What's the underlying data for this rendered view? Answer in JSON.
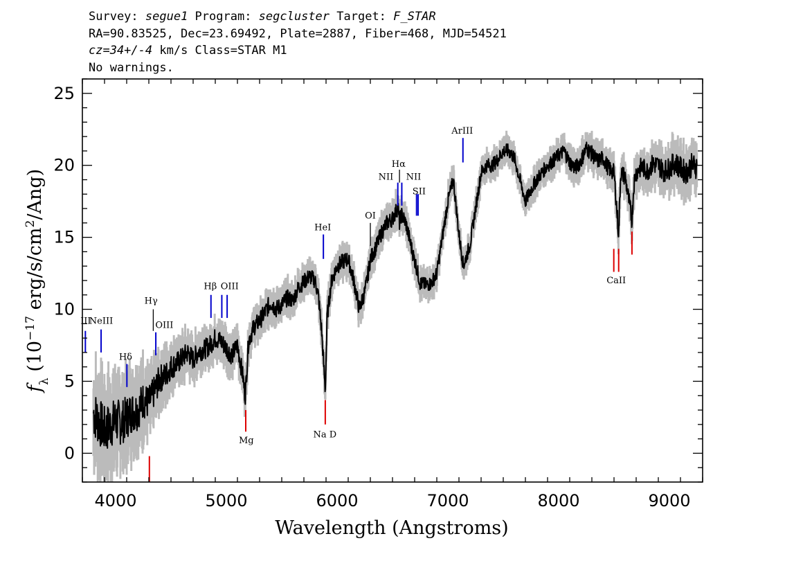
{
  "header": {
    "line1": {
      "survey_key": "Survey: ",
      "survey": "segue1",
      "program_key": " Program: ",
      "program": "segcluster",
      "target_key": " Target: ",
      "target": "F_STAR"
    },
    "line2": "RA=90.83525, Dec=23.69492, Plate=2887, Fiber=468, MJD=54521",
    "line3": {
      "cz": "cz=34+/-4",
      "rest": " km/s Class=STAR M1"
    },
    "line4": "No warnings."
  },
  "chart_data": {
    "type": "line",
    "title": "",
    "xlabel": "Wavelength (Angstroms)",
    "ylabel_parts": {
      "f": "f",
      "sub": "λ",
      "a": " (10",
      "exp1": "−17",
      "b": " erg/s/cm",
      "exp2": "2",
      "c": "/Ang)"
    },
    "xlim": [
      3700,
      9300
    ],
    "ylim": [
      -2,
      26
    ],
    "xticks": [
      4000,
      5000,
      6000,
      7000,
      8000,
      9000
    ],
    "yticks": [
      0,
      5,
      10,
      15,
      20,
      25
    ],
    "colors": {
      "flux": "#000000",
      "error_band": "#bbbbbb",
      "emission": "#0000cc",
      "absorption": "#dd0000",
      "neutral": "#000000"
    },
    "series": [
      {
        "role": "flux",
        "x": [
          3800,
          3850,
          3900,
          3950,
          4000,
          4050,
          4100,
          4150,
          4200,
          4250,
          4300,
          4350,
          4400,
          4450,
          4500,
          4550,
          4600,
          4650,
          4700,
          4750,
          4800,
          4850,
          4900,
          4950,
          5000,
          5050,
          5100,
          5150,
          5170,
          5200,
          5250,
          5300,
          5350,
          5400,
          5450,
          5500,
          5550,
          5600,
          5650,
          5700,
          5750,
          5800,
          5830,
          5860,
          5880,
          5893,
          5910,
          5950,
          6000,
          6050,
          6100,
          6150,
          6200,
          6250,
          6280,
          6300,
          6350,
          6400,
          6450,
          6500,
          6550,
          6563,
          6580,
          6620,
          6680,
          6720,
          6750,
          6800,
          6850,
          6900,
          6950,
          7000,
          7050,
          7100,
          7140,
          7200,
          7250,
          7300,
          7350,
          7400,
          7450,
          7500,
          7550,
          7600,
          7650,
          7700,
          7750,
          7800,
          7850,
          7900,
          7950,
          8000,
          8050,
          8100,
          8150,
          8200,
          8250,
          8300,
          8350,
          8400,
          8450,
          8500,
          8542,
          8560,
          8600,
          8662,
          8680,
          8700,
          8750,
          8800,
          8850,
          8900,
          8950,
          9000,
          9050,
          9100,
          9150,
          9200,
          9250
        ],
        "y": [
          2.8,
          2.2,
          1.6,
          1.9,
          2.3,
          2.1,
          2.5,
          2.9,
          3.0,
          3.7,
          3.5,
          4.3,
          5.2,
          5.4,
          6.0,
          6.2,
          6.6,
          7.0,
          6.5,
          7.1,
          7.2,
          7.5,
          8.0,
          7.8,
          7.3,
          6.8,
          7.5,
          5.3,
          3.9,
          7.8,
          8.8,
          9.2,
          9.8,
          10.5,
          10.0,
          10.3,
          10.8,
          10.6,
          11.5,
          11.9,
          12.3,
          12.0,
          11.0,
          8.5,
          6.0,
          4.3,
          9.5,
          12.0,
          13.0,
          13.3,
          13.5,
          12.0,
          10.0,
          11.2,
          12.5,
          13.5,
          14.3,
          15.3,
          16.0,
          16.3,
          17.1,
          16.0,
          16.6,
          16.0,
          14.0,
          12.8,
          11.8,
          11.7,
          11.8,
          12.5,
          15.0,
          17.5,
          19.0,
          15.2,
          13.0,
          14.5,
          17.0,
          19.5,
          20.0,
          20.0,
          20.4,
          21.0,
          21.0,
          20.5,
          19.0,
          17.5,
          18.3,
          19.0,
          19.5,
          20.0,
          20.3,
          20.7,
          21.0,
          20.2,
          19.8,
          20.3,
          21.2,
          20.8,
          20.3,
          20.5,
          19.8,
          19.5,
          15.2,
          19.5,
          19.2,
          16.2,
          18.8,
          19.5,
          19.9,
          19.6,
          20.1,
          20.0,
          19.6,
          19.8,
          20.2,
          19.8,
          19.5,
          20.0,
          19.9
        ]
      },
      {
        "role": "error",
        "x": [
          3800,
          4000,
          4200,
          4400,
          4600,
          4800,
          5000,
          5200,
          5400,
          5600,
          5800,
          6000,
          6200,
          6400,
          6600,
          6800,
          7000,
          7200,
          7400,
          7600,
          7800,
          8000,
          8200,
          8400,
          8600,
          8800,
          9000,
          9250
        ],
        "y": [
          2.5,
          2.3,
          2.0,
          1.4,
          1.1,
          1.0,
          1.0,
          0.9,
          0.9,
          0.8,
          0.8,
          0.8,
          0.8,
          0.8,
          0.8,
          0.7,
          0.7,
          0.7,
          0.7,
          0.7,
          0.7,
          0.7,
          0.8,
          0.8,
          0.9,
          1.0,
          1.1,
          1.2
        ]
      }
    ],
    "lines": [
      {
        "label": "III",
        "x": 3727,
        "type": "emission",
        "y0": 7.0,
        "y1": 8.5,
        "tx": 3730,
        "ty": 9.0
      },
      {
        "label": "NeIII",
        "x": 3869,
        "type": "emission",
        "y0": 7.0,
        "y1": 8.6,
        "tx": 3869,
        "ty": 9.0
      },
      {
        "label": "Hδ",
        "x": 4102,
        "type": "emission",
        "y0": 4.6,
        "y1": 6.2,
        "tx": 4090,
        "ty": 6.5
      },
      {
        "label": "Hγ",
        "x": 4340,
        "type": "neutral",
        "y0": 8.5,
        "y1": 10.0,
        "tx": 4320,
        "ty": 10.4
      },
      {
        "label": "OIII",
        "x": 4363,
        "type": "emission",
        "y0": 6.8,
        "y1": 8.4,
        "tx": 4440,
        "ty": 8.7
      },
      {
        "label": "Hβ",
        "x": 4861,
        "type": "emission",
        "y0": 9.4,
        "y1": 11.0,
        "tx": 4855,
        "ty": 11.4
      },
      {
        "label": "OIII",
        "x": 4959,
        "type": "emission",
        "y0": 9.4,
        "y1": 11.0,
        "tx": 5030,
        "ty": 11.4
      },
      {
        "label": "OIII",
        "x": 5007,
        "type": "emission",
        "y0": 9.4,
        "y1": 11.0,
        "tx": null,
        "ty": null
      },
      {
        "label": "Mg",
        "x": 5175,
        "type": "absorption",
        "y0": 1.5,
        "y1": 3.0,
        "tx": 5180,
        "ty": 0.7
      },
      {
        "label": "HeI",
        "x": 5876,
        "type": "emission",
        "y0": 13.5,
        "y1": 15.2,
        "tx": 5870,
        "ty": 15.5
      },
      {
        "label": "Na D",
        "x": 5893,
        "type": "absorption",
        "y0": 2.0,
        "y1": 3.7,
        "tx": 5890,
        "ty": 1.1
      },
      {
        "label": "OI",
        "x": 6300,
        "type": "neutral",
        "y0": 14.4,
        "y1": 16.0,
        "tx": 6300,
        "ty": 16.3
      },
      {
        "label": "NII",
        "x": 6548,
        "type": "emission",
        "y0": 17.2,
        "y1": 18.8,
        "tx": 6440,
        "ty": 19.0
      },
      {
        "label": "Hα",
        "x": 6563,
        "type": "neutral",
        "y0": 18.8,
        "y1": 19.7,
        "tx": 6555,
        "ty": 19.9
      },
      {
        "label": "NII",
        "x": 6584,
        "type": "emission",
        "y0": 17.2,
        "y1": 18.8,
        "tx": 6690,
        "ty": 19.0
      },
      {
        "label": "SII",
        "x": 6717,
        "type": "emission",
        "y0": 16.5,
        "y1": 18.0,
        "tx": 6740,
        "ty": 18.0
      },
      {
        "label": "SII",
        "x": 6731,
        "type": "emission",
        "y0": 16.5,
        "y1": 18.0,
        "tx": null,
        "ty": null
      },
      {
        "label": "ArIII",
        "x": 7136,
        "type": "emission",
        "y0": 20.2,
        "y1": 21.9,
        "tx": 7130,
        "ty": 22.2
      },
      {
        "label": "CaII",
        "x": 8498,
        "type": "absorption",
        "y0": 12.6,
        "y1": 14.2,
        "tx": null,
        "ty": null
      },
      {
        "label": "CaII",
        "x": 8542,
        "type": "absorption",
        "y0": 12.6,
        "y1": 14.2,
        "tx": 8520,
        "ty": 11.8
      },
      {
        "label": "",
        "x": 8662,
        "type": "absorption",
        "y0": 13.8,
        "y1": 15.4,
        "tx": null,
        "ty": null
      },
      {
        "label": "",
        "x": 4305,
        "type": "absorption",
        "y0": -2.0,
        "y1": -0.2,
        "tx": null,
        "ty": null
      }
    ]
  }
}
